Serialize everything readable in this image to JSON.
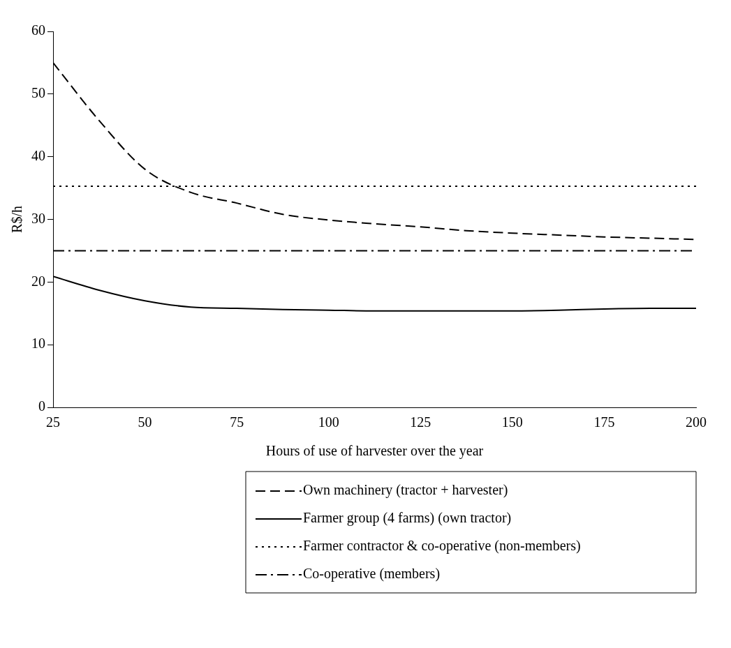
{
  "chart_data": {
    "type": "line",
    "xlabel": "Hours of use of harvester over the year",
    "ylabel": "R$/h",
    "x": [
      25,
      37.5,
      50,
      62.5,
      75,
      87.5,
      100,
      112.5,
      125,
      137.5,
      150,
      162.5,
      175,
      187.5,
      200
    ],
    "xlim": [
      25,
      200
    ],
    "xticks": [
      25,
      50,
      75,
      100,
      125,
      150,
      175,
      200
    ],
    "ylim": [
      0,
      60
    ],
    "yticks": [
      0,
      10,
      20,
      30,
      40,
      50,
      60
    ],
    "grid": false,
    "legend": "bottom",
    "marker": "none",
    "series": [
      {
        "name": "Own machinery (tractor + harvester)",
        "color": "#000000",
        "line_style": "dashed",
        "values": [
          55.0,
          45.8,
          38.0,
          34.3,
          32.6,
          30.8,
          29.9,
          29.3,
          28.8,
          28.2,
          27.8,
          27.5,
          27.2,
          27.0,
          26.8
        ]
      },
      {
        "name": "Farmer group (4 farms) (own tractor)",
        "color": "#000000",
        "line_style": "solid",
        "values": [
          20.9,
          18.7,
          17.0,
          16.0,
          15.8,
          15.6,
          15.5,
          15.4,
          15.4,
          15.4,
          15.4,
          15.5,
          15.7,
          15.8,
          15.8
        ]
      },
      {
        "name": "Farmer contractor & co-operative (non-members)",
        "color": "#000000",
        "line_style": "dotted",
        "values": [
          35.3,
          35.3,
          35.3,
          35.3,
          35.3,
          35.3,
          35.3,
          35.3,
          35.3,
          35.3,
          35.3,
          35.3,
          35.3,
          35.3,
          35.3
        ]
      },
      {
        "name": "Co-operative (members)",
        "color": "#000000",
        "line_style": "dashdot",
        "values": [
          25.0,
          25.0,
          25.0,
          25.0,
          25.0,
          25.0,
          25.0,
          25.0,
          25.0,
          25.0,
          25.0,
          25.0,
          25.0,
          25.0,
          25.0
        ]
      }
    ]
  }
}
